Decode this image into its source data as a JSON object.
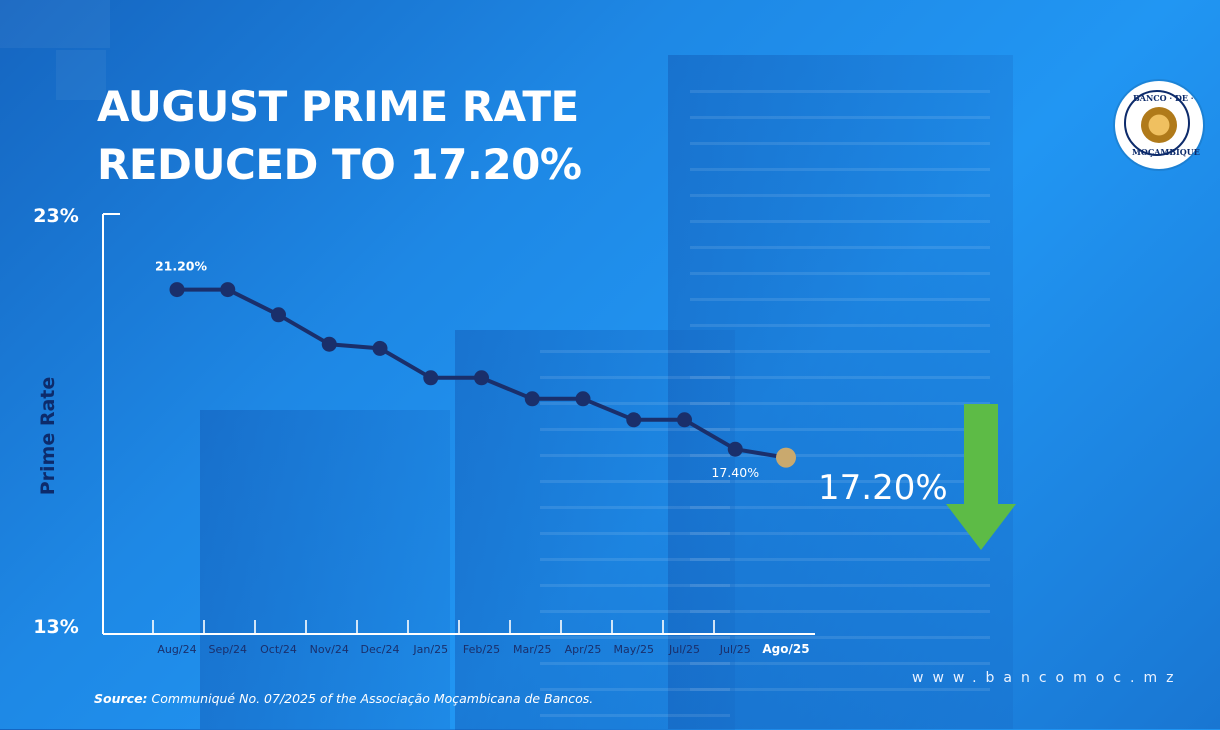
{
  "headline": {
    "line1": "AUGUST PRIME RATE",
    "line2": "REDUCED TO 17.20%"
  },
  "chart_data": {
    "type": "line",
    "categories": [
      "Aug/24",
      "Sep/24",
      "Oct/24",
      "Nov/24",
      "Dec/24",
      "Jan/25",
      "Feb/25",
      "Mar/25",
      "Apr/25",
      "May/25",
      "Jul/25",
      "Jul/25",
      "Ago/25"
    ],
    "values": [
      21.2,
      21.2,
      20.6,
      19.9,
      19.8,
      19.1,
      19.1,
      18.6,
      18.6,
      18.1,
      18.1,
      17.4,
      17.2
    ],
    "title": "",
    "xlabel": "",
    "ylabel": "Prime Rate",
    "ylim": [
      13,
      23
    ],
    "y_tick_labels": {
      "min": "13%",
      "max": "23%"
    },
    "data_labels": {
      "first": "21.20%",
      "second_last": "17.40%",
      "last": "17.20%"
    },
    "grid": false,
    "colors": {
      "line": "#1a2f6b",
      "highlight": "#c9a96e",
      "arrow": "#5dbb46"
    }
  },
  "logo": {
    "top_text": "BANCO · DE ·",
    "bottom_text": "MOÇAMBIQUE"
  },
  "website": "www.bancomoc.mz",
  "source": {
    "label": "Source:",
    "text": " Communiqué No. 07/2025 of the Associação Moçambicana de Bancos."
  }
}
